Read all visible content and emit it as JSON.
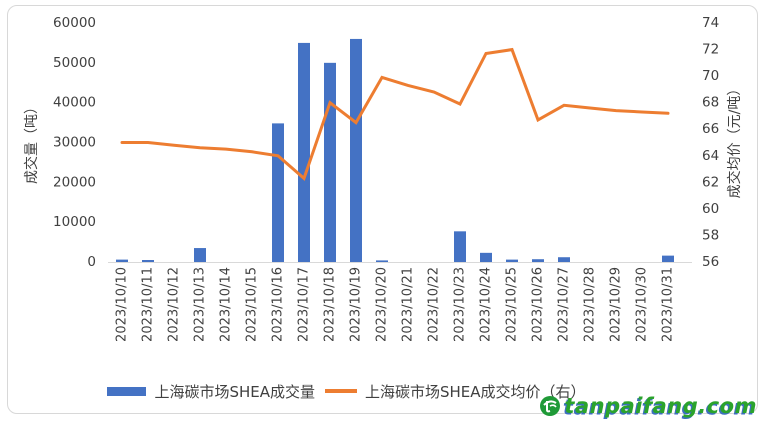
{
  "chart_data": {
    "type": "bar",
    "title": "",
    "categories": [
      "2023/10/10",
      "2023/10/11",
      "2023/10/12",
      "2023/10/13",
      "2023/10/14",
      "2023/10/15",
      "2023/10/16",
      "2023/10/17",
      "2023/10/18",
      "2023/10/19",
      "2023/10/20",
      "2023/10/21",
      "2023/10/22",
      "2023/10/23",
      "2023/10/24",
      "2023/10/25",
      "2023/10/26",
      "2023/10/27",
      "2023/10/28",
      "2023/10/29",
      "2023/10/30",
      "2023/10/31"
    ],
    "series": [
      {
        "name": "上海碳市场SHEA成交量",
        "type": "bar",
        "axis": "left",
        "color": "#4472C4",
        "values": [
          600,
          500,
          0,
          3500,
          0,
          0,
          34800,
          55000,
          50000,
          56000,
          400,
          0,
          0,
          7700,
          2300,
          600,
          700,
          1200,
          0,
          0,
          0,
          1600
        ]
      },
      {
        "name": "上海碳市场SHEA成交均价（右）",
        "type": "line",
        "axis": "right",
        "color": "#ED7D31",
        "values": [
          65.0,
          65.0,
          64.8,
          64.6,
          64.5,
          64.3,
          64.0,
          62.3,
          68.0,
          66.5,
          69.9,
          69.3,
          68.8,
          67.9,
          71.7,
          72.0,
          66.7,
          67.8,
          67.6,
          67.4,
          67.3,
          67.2
        ]
      }
    ],
    "left_axis": {
      "label": "成交量（吨）",
      "min": 0,
      "max": 60000,
      "step": 10000,
      "ticks": [
        "0",
        "10000",
        "20000",
        "30000",
        "40000",
        "50000",
        "60000"
      ]
    },
    "right_axis": {
      "label": "成交均价（元/吨）",
      "min": 56,
      "max": 74,
      "step": 2,
      "ticks": [
        "56",
        "58",
        "60",
        "62",
        "64",
        "66",
        "68",
        "70",
        "72",
        "74"
      ]
    },
    "grid": false,
    "legend_position": "bottom"
  },
  "legend": {
    "items": [
      {
        "label": "上海碳市场SHEA成交量",
        "marker": "bar",
        "color": "#4472C4"
      },
      {
        "label": "上海碳市场SHEA成交均价（右）",
        "marker": "line",
        "color": "#ED7D31"
      }
    ]
  },
  "watermark": {
    "text": "tanpaifang.com",
    "icon_color": "#1F9A37",
    "text_color": "#2BA32C",
    "shadow_color": "#3C6EC0"
  },
  "frame": {
    "border_color": "#D8D8D8"
  },
  "text_color": "#404040"
}
